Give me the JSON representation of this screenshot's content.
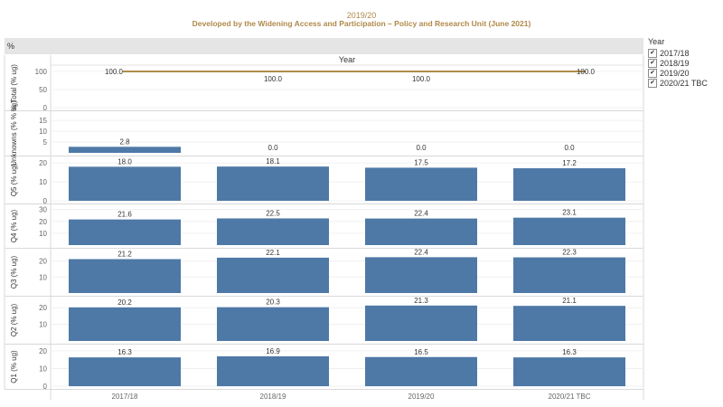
{
  "header": {
    "title": "2019/20",
    "subtitle": "Developed by the Widening Access and Participation – Policy and Research Unit (June 2021)"
  },
  "toolbar": {
    "percent_label": "%"
  },
  "legend": {
    "title": "Year",
    "items": [
      "2017/18",
      "2018/19",
      "2019/20",
      "2020/21 TBC"
    ]
  },
  "colors": {
    "bar": "#4e79a7",
    "line": "#b0894a",
    "accent": "#b0894a"
  },
  "chart_data": {
    "type": "bar",
    "column_header": "Year",
    "categories": [
      "2017/18",
      "2018/19",
      "2019/20",
      "2020/21 TBC"
    ],
    "panels": [
      {
        "name": "% Total (% ug)",
        "type": "line",
        "values": [
          100.0,
          100.0,
          100.0,
          100.0
        ],
        "ylim": [
          0,
          110
        ],
        "ticks": [
          0,
          50,
          100
        ]
      },
      {
        "name": "Unknowns (% % ug)",
        "type": "bar",
        "values": [
          2.8,
          0.0,
          0.0,
          0.0
        ],
        "ylim": [
          0,
          18
        ],
        "ticks": [
          5,
          10,
          15
        ]
      },
      {
        "name": "Q5 (% ug)",
        "type": "bar",
        "values": [
          18.0,
          18.1,
          17.5,
          17.2
        ],
        "ylim": [
          0,
          22
        ],
        "ticks": [
          0,
          10,
          20
        ]
      },
      {
        "name": "Q4 (% ug)",
        "type": "bar",
        "values": [
          21.6,
          22.5,
          22.4,
          23.1
        ],
        "ylim": [
          0,
          32
        ],
        "ticks": [
          10,
          20,
          30
        ]
      },
      {
        "name": "Q3 (% ug)",
        "type": "bar",
        "values": [
          21.2,
          22.1,
          22.4,
          22.3
        ],
        "ylim": [
          0,
          26
        ],
        "ticks": [
          10,
          20
        ]
      },
      {
        "name": "Q2 (% ug)",
        "type": "bar",
        "values": [
          20.2,
          20.3,
          21.3,
          21.1
        ],
        "ylim": [
          0,
          25
        ],
        "ticks": [
          10,
          20
        ]
      },
      {
        "name": "Q1 (% ug)",
        "type": "bar",
        "values": [
          16.3,
          16.9,
          16.5,
          16.3
        ],
        "ylim": [
          0,
          22
        ],
        "ticks": [
          0,
          10,
          20
        ]
      }
    ]
  }
}
